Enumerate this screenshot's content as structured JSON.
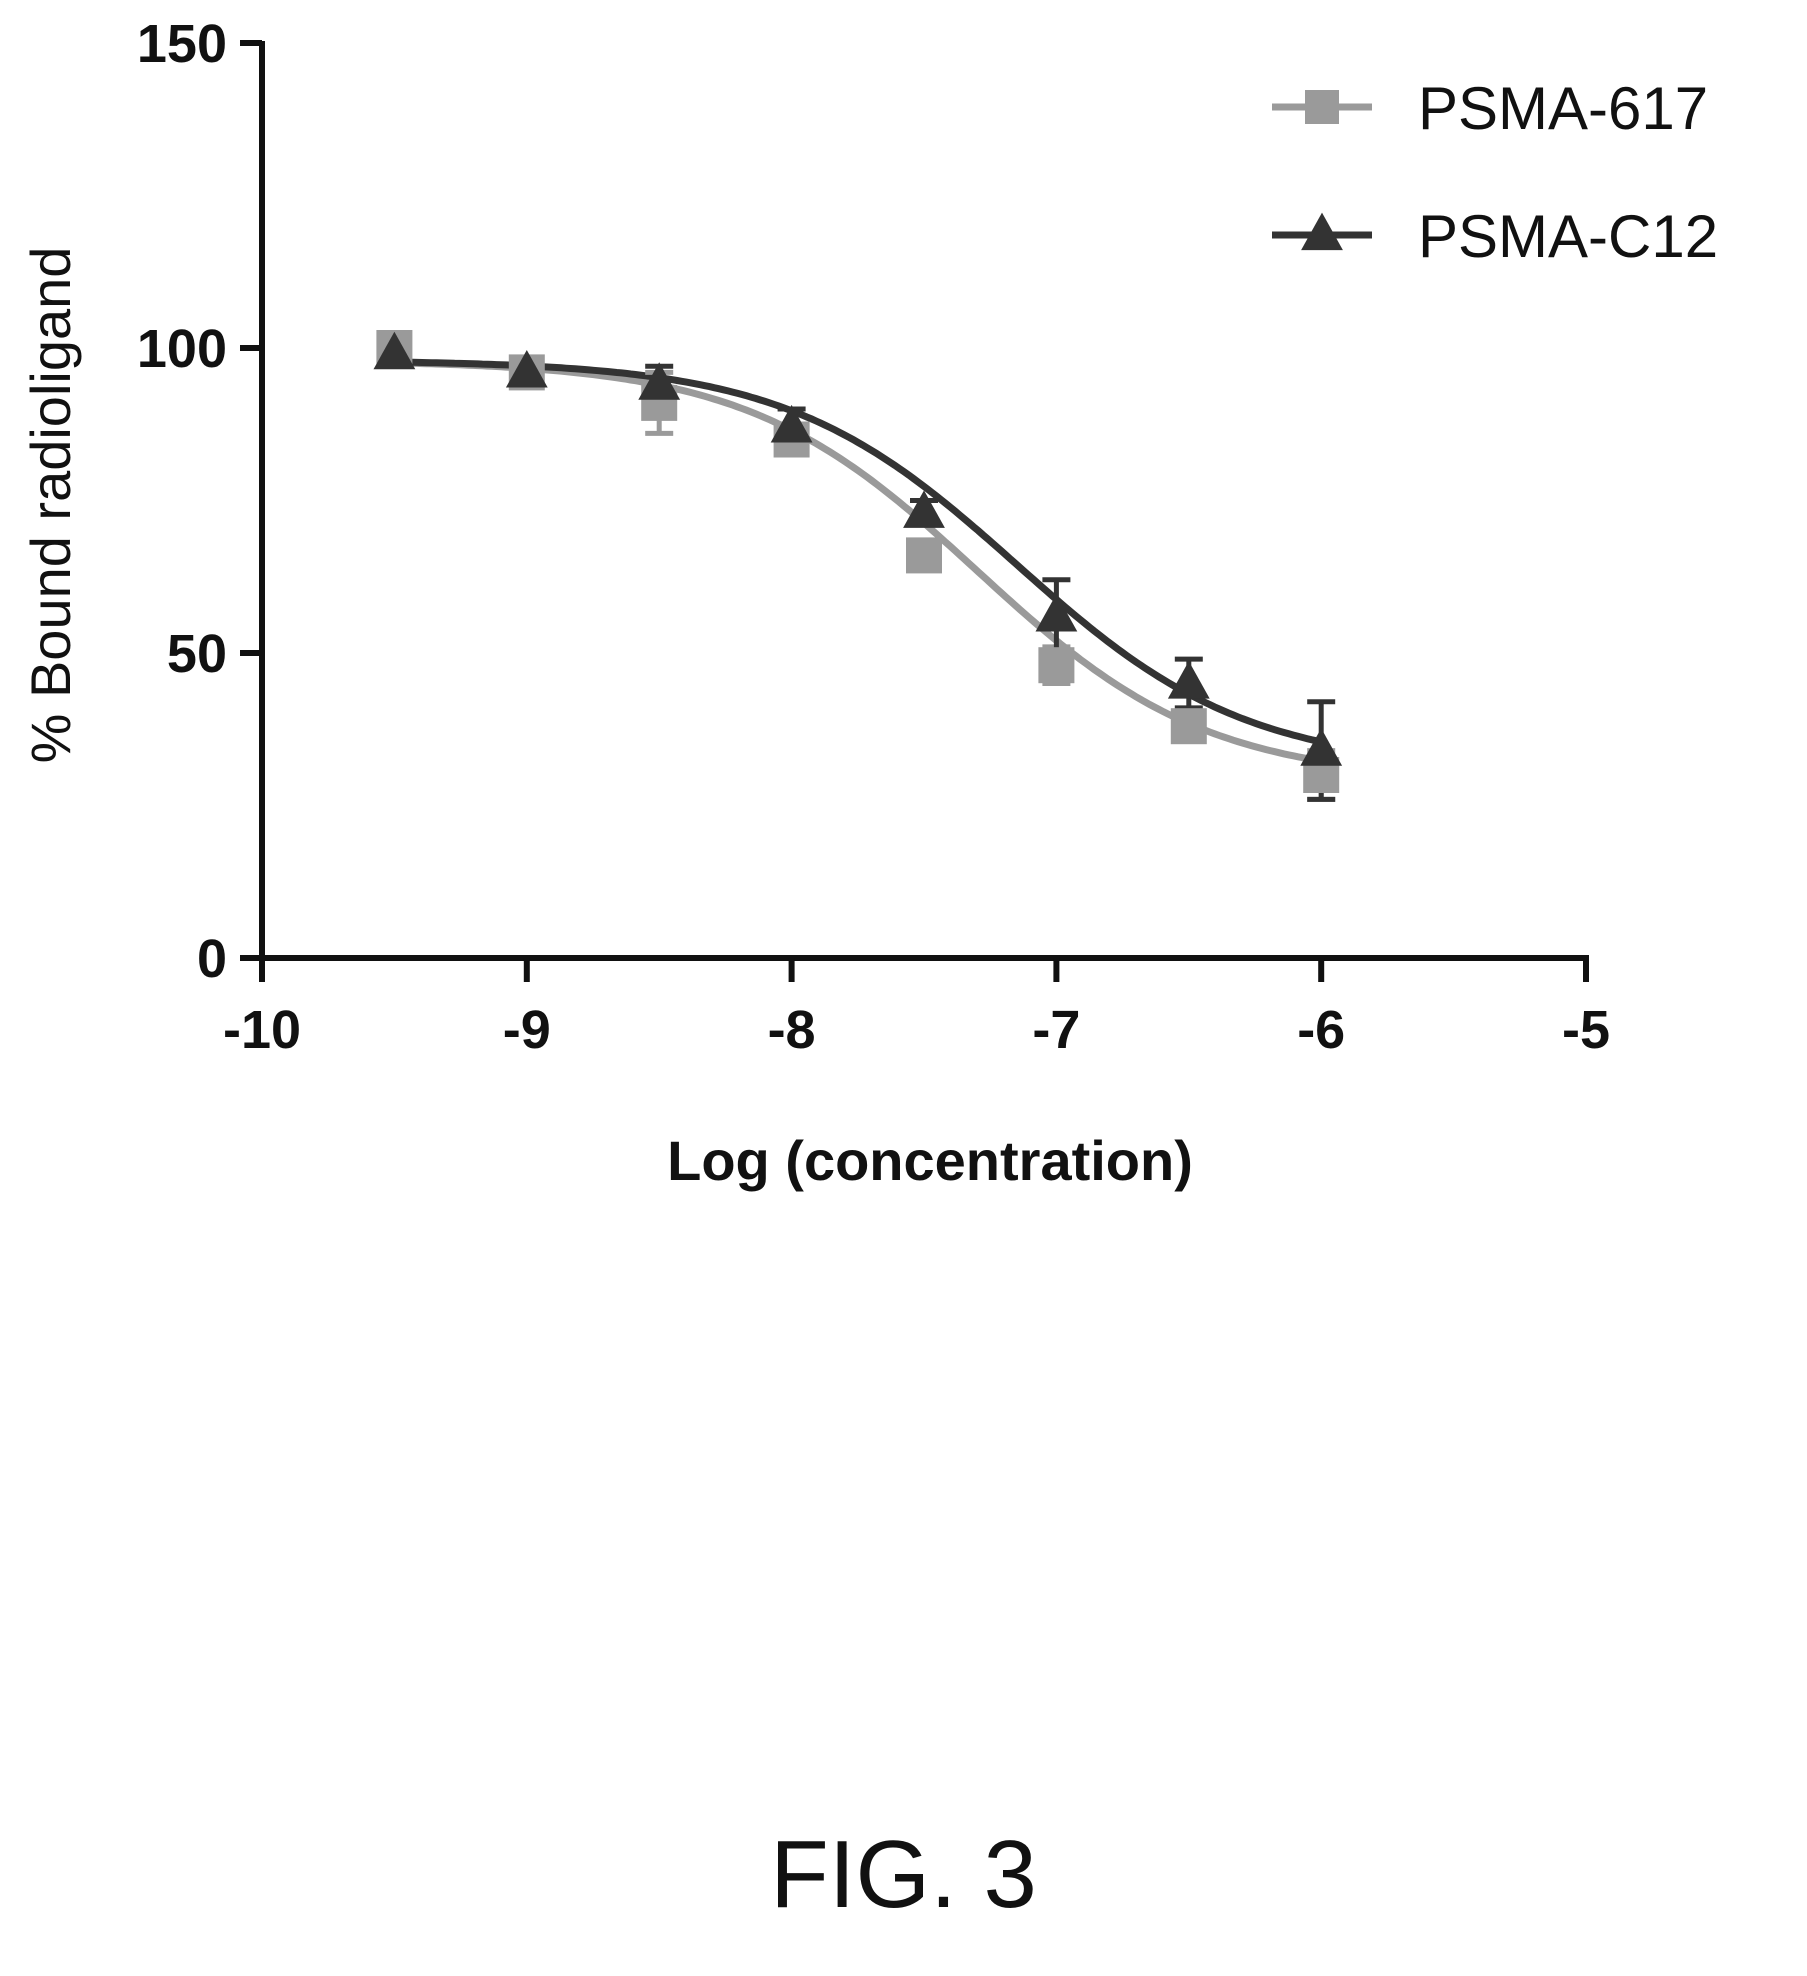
{
  "chart_data": {
    "type": "line",
    "xlabel": "Log (concentration)",
    "ylabel": "% Bound radioligand",
    "xlim": [
      -10,
      -5
    ],
    "ylim": [
      0,
      150
    ],
    "xticks": [
      "-10",
      "-9",
      "-8",
      "-7",
      "-6",
      "-5"
    ],
    "yticks": [
      "0",
      "50",
      "100",
      "150"
    ],
    "grid": false,
    "legend_position": "top-right",
    "x": [
      -9.5,
      -9,
      -8.5,
      -8,
      -7.5,
      -7,
      -6.5,
      -6
    ],
    "series": [
      {
        "name": "PSMA-617",
        "marker": "square",
        "color": "#9a9a9a",
        "values": [
          100,
          96,
          91,
          85,
          66,
          48,
          38,
          30
        ],
        "error": [
          2,
          2,
          5,
          2,
          2,
          3,
          2,
          4
        ],
        "fit": {
          "top": 98,
          "bottom": 29,
          "log_ic50": -7.3,
          "hill": -1
        }
      },
      {
        "name": "PSMA-C12",
        "marker": "triangle",
        "color": "#333333",
        "values": [
          99,
          96,
          94,
          87,
          73,
          56,
          45,
          34
        ],
        "error": [
          1,
          1,
          3,
          3,
          2,
          6,
          4,
          8
        ],
        "fit": {
          "top": 98,
          "bottom": 31,
          "log_ic50": -7.15,
          "hill": -1
        }
      }
    ]
  },
  "figure_caption": "FIG. 3"
}
